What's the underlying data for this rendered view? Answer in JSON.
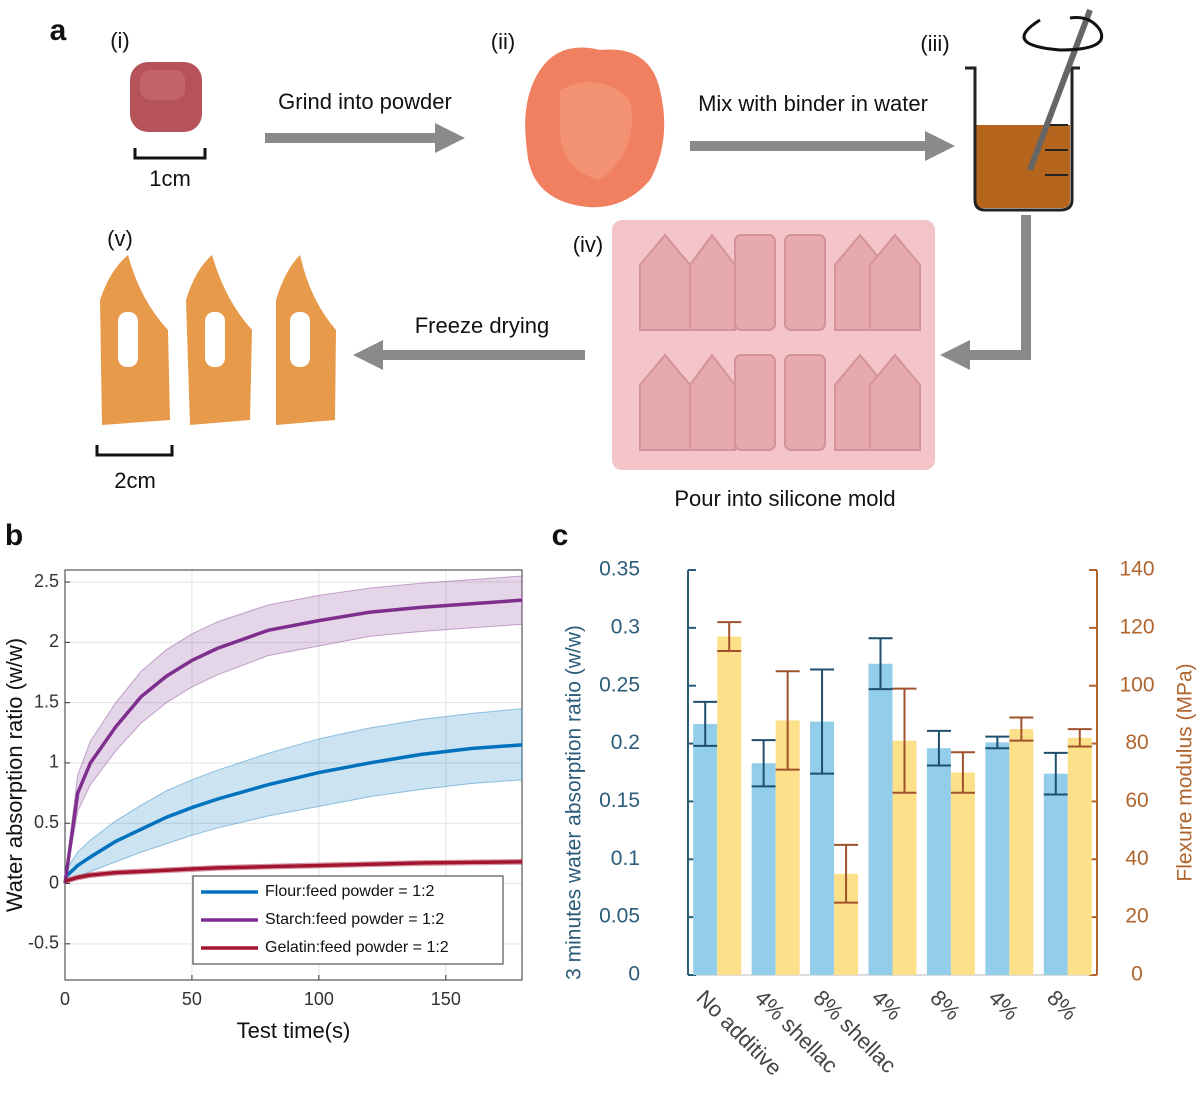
{
  "panel_a": {
    "label": "a",
    "step_i": "(i)",
    "scale_i": "1cm",
    "arrow_1": "Grind into powder",
    "step_ii": "(ii)",
    "arrow_2": "Mix with binder in water",
    "step_iii": "(iii)",
    "step_iv": "(iv)",
    "caption_iv": "Pour into silicone mold",
    "arrow_3": "Freeze drying",
    "step_v": "(v)",
    "scale_v": "2cm"
  },
  "chart_data": [
    {
      "label": "b",
      "type": "line",
      "xlabel": "Test time(s)",
      "ylabel": "Water absorption ratio (w/w)",
      "x": [
        0,
        5,
        10,
        20,
        30,
        40,
        50,
        60,
        80,
        100,
        120,
        140,
        160,
        180
      ],
      "xlim": [
        0,
        180
      ],
      "xticks": [
        0,
        50,
        100,
        150
      ],
      "ylim": [
        -0.8,
        2.6
      ],
      "yticks": [
        -0.5,
        0,
        0.5,
        1,
        1.5,
        2,
        2.5
      ],
      "grid": true,
      "legend": "lower right",
      "series": [
        {
          "name": "Flour:feed powder = 1:2",
          "color": "#0072bd",
          "values": [
            0.05,
            0.15,
            0.22,
            0.35,
            0.45,
            0.55,
            0.63,
            0.7,
            0.82,
            0.92,
            1.0,
            1.07,
            1.12,
            1.15
          ],
          "band_low": [
            0.0,
            0.05,
            0.1,
            0.18,
            0.26,
            0.33,
            0.4,
            0.46,
            0.56,
            0.64,
            0.72,
            0.78,
            0.83,
            0.86
          ],
          "band_high": [
            0.1,
            0.26,
            0.36,
            0.52,
            0.65,
            0.77,
            0.86,
            0.94,
            1.08,
            1.2,
            1.29,
            1.36,
            1.41,
            1.45
          ]
        },
        {
          "name": "Starch:feed powder = 1:2",
          "color": "#7e2f8e",
          "values": [
            0.0,
            0.75,
            1.0,
            1.3,
            1.55,
            1.72,
            1.85,
            1.95,
            2.1,
            2.18,
            2.25,
            2.29,
            2.32,
            2.35
          ],
          "band_low": [
            0.0,
            0.6,
            0.82,
            1.1,
            1.33,
            1.5,
            1.63,
            1.73,
            1.89,
            1.97,
            2.05,
            2.09,
            2.12,
            2.15
          ],
          "band_high": [
            0.05,
            0.9,
            1.18,
            1.5,
            1.76,
            1.94,
            2.07,
            2.17,
            2.31,
            2.39,
            2.45,
            2.49,
            2.52,
            2.55
          ]
        },
        {
          "name": "Gelatin:feed powder = 1:2",
          "color": "#a2142f",
          "values": [
            0.02,
            0.05,
            0.07,
            0.09,
            0.1,
            0.11,
            0.12,
            0.13,
            0.14,
            0.15,
            0.16,
            0.17,
            0.175,
            0.18
          ],
          "band_low": [
            0.0,
            0.03,
            0.05,
            0.07,
            0.08,
            0.09,
            0.1,
            0.11,
            0.12,
            0.13,
            0.14,
            0.15,
            0.155,
            0.16
          ],
          "band_high": [
            0.04,
            0.07,
            0.09,
            0.11,
            0.12,
            0.13,
            0.14,
            0.15,
            0.16,
            0.17,
            0.18,
            0.19,
            0.195,
            0.2
          ]
        }
      ]
    },
    {
      "label": "c",
      "type": "bar",
      "ylabel": "3 minutes water absorption ratio (w/w)",
      "y2label": "Flexure modulus (MPa)",
      "categories": [
        "No additive",
        "4% shellac",
        "8% shellac",
        "4%",
        "8%",
        "4%",
        "8%"
      ],
      "ylim": [
        0,
        0.35
      ],
      "yticks": [
        0,
        0.05,
        0.1,
        0.15,
        0.2,
        0.25,
        0.3,
        0.35
      ],
      "y2lim": [
        0,
        140
      ],
      "y2ticks": [
        0,
        20,
        40,
        60,
        80,
        100,
        120,
        140
      ],
      "axis_color": "#2b5c7a",
      "axis2_color": "#b0652e",
      "series": [
        {
          "color": "#92cdea",
          "error_color": "#1f4e6e",
          "values": [
            0.217,
            0.183,
            0.219,
            0.269,
            0.196,
            0.201,
            0.174
          ],
          "errors": [
            0.019,
            0.02,
            0.045,
            0.022,
            0.015,
            0.005,
            0.018
          ]
        },
        {
          "color": "#fde08a",
          "error_color": "#a0522d",
          "axis": "y2",
          "values": [
            117,
            88,
            35,
            81,
            70,
            85,
            82
          ],
          "errors": [
            5,
            17,
            10,
            18,
            7,
            4,
            3
          ]
        }
      ]
    }
  ]
}
